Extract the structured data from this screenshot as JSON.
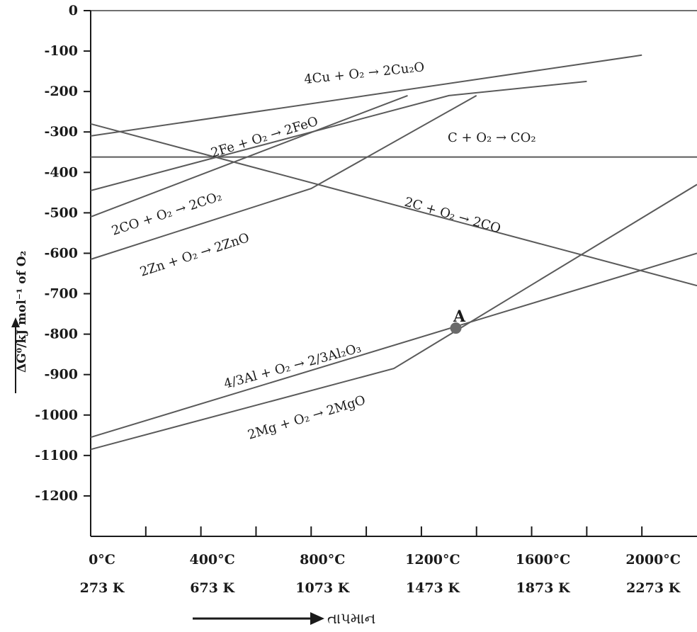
{
  "chart_data": {
    "type": "line",
    "ylabel": "ΔG⁰/kJ mol⁻¹ of O₂",
    "xlabel": "તાપમાન",
    "ylim": [
      -1300,
      0
    ],
    "yticks": [
      0,
      -100,
      -200,
      -300,
      -400,
      -500,
      -600,
      -700,
      -800,
      -900,
      -1000,
      -1100,
      -1200
    ],
    "xlim": [
      0,
      2200
    ],
    "xticks_celsius": [
      "0°C",
      "400°C",
      "800°C",
      "1200°C",
      "1600°C",
      "2000°C"
    ],
    "xticks_kelvin": [
      "273 K",
      "673 K",
      "1073 K",
      "1473 K",
      "1873 K",
      "2273 K"
    ],
    "xticks_values": [
      0,
      400,
      800,
      1200,
      1600,
      2000
    ],
    "series": [
      {
        "name": "4Cu + O₂ → 2Cu₂O",
        "x": [
          0,
          1000,
          2000
        ],
        "y": [
          -310,
          -210,
          -110
        ]
      },
      {
        "name": "2Fe + O₂ → 2FeO",
        "x": [
          0,
          1300,
          1800
        ],
        "y": [
          -445,
          -210,
          -175
        ]
      },
      {
        "name": "C + O₂ → CO₂",
        "x": [
          0,
          2200
        ],
        "y": [
          -362,
          -362
        ]
      },
      {
        "name": "2CO + O₂ → 2CO₂",
        "x": [
          0,
          1150
        ],
        "y": [
          -510,
          -210
        ]
      },
      {
        "name": "2Zn + O₂ → 2ZnO",
        "x": [
          0,
          800,
          1400
        ],
        "y": [
          -615,
          -440,
          -210
        ]
      },
      {
        "name": "2C + O₂ → 2CO",
        "x": [
          0,
          2200
        ],
        "y": [
          -280,
          -680
        ]
      },
      {
        "name": "4/3Al + O₂ → 2/3Al₂O₃",
        "x": [
          0,
          2200
        ],
        "y": [
          -1055,
          -600
        ]
      },
      {
        "name": "2Mg + O₂ → 2MgO",
        "x": [
          0,
          1100,
          2200
        ],
        "y": [
          -1085,
          -885,
          -430
        ]
      }
    ],
    "annotations": [
      {
        "text": "A",
        "x": 1325,
        "y": -785
      }
    ]
  },
  "colors": {
    "line": "#5a5a5a",
    "axis": "#1a1a1a",
    "point": "#6a6a6a"
  }
}
